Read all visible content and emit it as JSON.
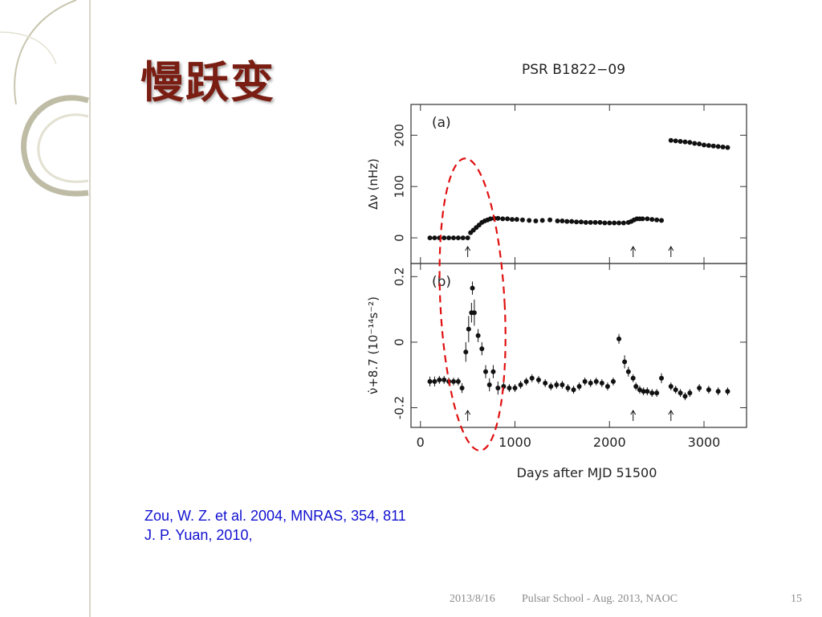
{
  "slide": {
    "title": "慢跃变",
    "references": [
      "Zou, W. Z. et al. 2004, MNRAS, 354, 811",
      "J. P. Yuan, 2010,"
    ],
    "footer": {
      "date": "2013/8/16",
      "event": "Pulsar School  - Aug. 2013, NAOC",
      "page": "15"
    }
  },
  "chart_data": {
    "type": "scatter",
    "title": "PSR B1822−09",
    "xlabel": "Days after MJD 51500",
    "xlim": [
      -100,
      3450
    ],
    "xticks": [
      0,
      1000,
      2000,
      3000
    ],
    "panels": [
      {
        "label": "(a)",
        "ylabel": "Δν (nHz)",
        "ylim": [
          -50,
          260
        ],
        "yticks": [
          0,
          100,
          200
        ],
        "series": [
          {
            "x": [
              100,
              150,
              200,
              250,
              300,
              350,
              400,
              450,
              500,
              530,
              560,
              590,
              620,
              650,
              680,
              710,
              740,
              780,
              820,
              870,
              920,
              970,
              1020,
              1080,
              1150,
              1220,
              1290,
              1370,
              1450,
              1500,
              1550,
              1600,
              1650,
              1700,
              1750,
              1800,
              1850,
              1900,
              1950,
              2000,
              2050,
              2100,
              2150,
              2200,
              2230,
              2260,
              2290,
              2320,
              2350,
              2400,
              2450,
              2500,
              2550,
              2650,
              2700,
              2750,
              2800,
              2850,
              2900,
              2950,
              3000,
              3050,
              3100,
              3150,
              3200,
              3250
            ],
            "y": [
              0,
              0,
              0,
              0,
              0,
              0,
              0,
              0,
              0,
              10,
              15,
              20,
              25,
              30,
              33,
              35,
              37,
              38,
              38,
              37,
              37,
              36,
              36,
              35,
              34,
              33,
              34,
              35,
              33,
              33,
              32,
              32,
              31,
              31,
              30,
              30,
              30,
              30,
              29,
              29,
              29,
              29,
              29,
              30,
              32,
              35,
              37,
              37,
              37,
              37,
              36,
              35,
              34,
              190,
              189,
              188,
              187,
              186,
              184,
              183,
              181,
              180,
              179,
              178,
              177,
              176
            ]
          }
        ],
        "arrows_x": [
          500,
          2250,
          2650
        ]
      },
      {
        "label": "(b)",
        "ylabel": "ν̇+8.7 (10⁻¹⁴s⁻²)",
        "ylim": [
          -0.26,
          0.24
        ],
        "yticks": [
          -0.2,
          0,
          0.2
        ],
        "series": [
          {
            "x": [
              100,
              150,
              200,
              250,
              300,
              350,
              400,
              440,
              480,
              510,
              540,
              570,
              610,
              650,
              690,
              730,
              770,
              820,
              880,
              940,
              1000,
              1060,
              1120,
              1180,
              1250,
              1320,
              1380,
              1440,
              1500,
              1560,
              1620,
              1680,
              1740,
              1800,
              1860,
              1920,
              1980,
              2040,
              2100,
              2160,
              2200,
              2250,
              2280,
              2320,
              2360,
              2400,
              2450,
              2500,
              2550,
              2650,
              2700,
              2750,
              2800,
              2850,
              2950,
              3050,
              3150,
              3250
            ],
            "y": [
              -0.12,
              -0.12,
              -0.115,
              -0.115,
              -0.12,
              -0.12,
              -0.12,
              -0.14,
              -0.03,
              0.04,
              0.09,
              0.09,
              0.02,
              -0.02,
              -0.09,
              -0.13,
              -0.09,
              -0.14,
              -0.135,
              -0.14,
              -0.14,
              -0.13,
              -0.12,
              -0.11,
              -0.115,
              -0.125,
              -0.135,
              -0.13,
              -0.13,
              -0.14,
              -0.145,
              -0.135,
              -0.12,
              -0.125,
              -0.12,
              -0.125,
              -0.135,
              -0.12,
              0.01,
              -0.06,
              -0.09,
              -0.11,
              -0.135,
              -0.145,
              -0.15,
              -0.15,
              -0.155,
              -0.155,
              -0.11,
              -0.135,
              -0.145,
              -0.155,
              -0.165,
              -0.155,
              -0.14,
              -0.145,
              -0.15,
              -0.15
            ],
            "err": [
              0.015,
              0.015,
              0.012,
              0.012,
              0.012,
              0.012,
              0.012,
              0.015,
              0.03,
              0.04,
              0.03,
              0.04,
              0.02,
              0.02,
              0.02,
              0.02,
              0.02,
              0.02,
              0.012,
              0.012,
              0.012,
              0.012,
              0.012,
              0.012,
              0.012,
              0.012,
              0.012,
              0.012,
              0.012,
              0.012,
              0.012,
              0.012,
              0.012,
              0.012,
              0.012,
              0.012,
              0.012,
              0.012,
              0.015,
              0.02,
              0.015,
              0.012,
              0.012,
              0.012,
              0.012,
              0.012,
              0.012,
              0.012,
              0.015,
              0.012,
              0.012,
              0.012,
              0.012,
              0.012,
              0.012,
              0.012,
              0.012,
              0.012
            ]
          }
        ],
        "extra_points": [
          {
            "x": 550,
            "y": 0.165,
            "err": 0.02
          }
        ],
        "arrows_x": [
          500,
          2250,
          2650
        ]
      }
    ],
    "highlight_ellipse": {
      "color": "#e01010",
      "style": "dashed"
    }
  }
}
